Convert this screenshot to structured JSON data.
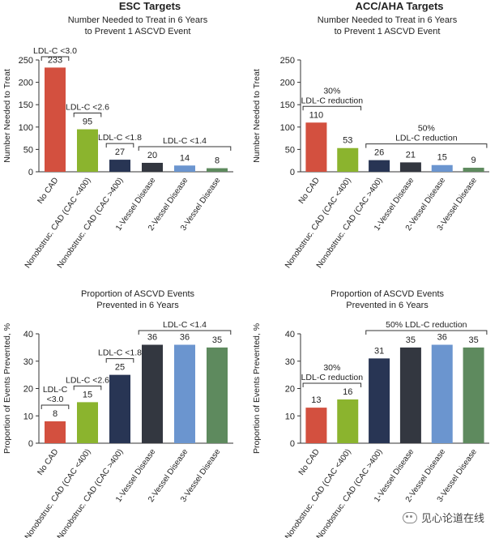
{
  "chart_data": [
    {
      "id": "esc-nnt",
      "type": "bar",
      "header": "ESC Targets",
      "title": "Number Needed to Treat in 6 Years\nto Prevent 1 ASCVD Event",
      "ylabel": "Number Needed to Treat",
      "ylim": [
        0,
        250
      ],
      "yticks": [
        "0",
        "50",
        "100",
        "150",
        "200",
        "250"
      ],
      "categories": [
        "No CAD",
        "Nonobstruc. CAD (CAC <400)",
        "Nonobstruc. CAD (CAC >400)",
        "1-Vessel Disease",
        "2-Vessel Disease",
        "3-Vessel Disease"
      ],
      "values": [
        233,
        95,
        27,
        20,
        14,
        8
      ],
      "colors": [
        "#d3503f",
        "#8bb42e",
        "#283554",
        "#333740",
        "#6b95cf",
        "#5e8a5e"
      ],
      "brackets": [
        {
          "label": "LDL-C <3.0",
          "from": 0,
          "to": 0
        },
        {
          "label": "LDL-C <2.6",
          "from": 1,
          "to": 1
        },
        {
          "label": "LDL-C <1.8",
          "from": 2,
          "to": 2
        },
        {
          "label": "LDL-C <1.4",
          "from": 3,
          "to": 5
        }
      ]
    },
    {
      "id": "acc-nnt",
      "type": "bar",
      "header": "ACC/AHA Targets",
      "title": "Number Needed to Treat in 6 Years\nto Prevent 1 ASCVD Event",
      "ylabel": "Number Needed to Treat",
      "ylim": [
        0,
        250
      ],
      "yticks": [
        "0",
        "50",
        "100",
        "150",
        "200",
        "250"
      ],
      "categories": [
        "No CAD",
        "Nonobstruc. CAD (CAC <400)",
        "Nonobstruc. CAD (CAC >400)",
        "1-Vessel Disease",
        "2-Vessel Disease",
        "3-Vessel Disease"
      ],
      "values": [
        110,
        53,
        26,
        21,
        15,
        9
      ],
      "colors": [
        "#d3503f",
        "#8bb42e",
        "#283554",
        "#333740",
        "#6b95cf",
        "#5e8a5e"
      ],
      "brackets": [
        {
          "label": "30%\nLDL-C reduction",
          "from": 0,
          "to": 1
        },
        {
          "label": "50%\nLDL-C reduction",
          "from": 2,
          "to": 5
        }
      ]
    },
    {
      "id": "esc-prop",
      "type": "bar",
      "header": "",
      "title": "Proportion of ASCVD Events\nPrevented in 6 Years",
      "ylabel": "Proportion of Events Prevented, %",
      "ylim": [
        0,
        40
      ],
      "yticks": [
        "0",
        "10",
        "20",
        "30",
        "40"
      ],
      "categories": [
        "No CAD",
        "Nonobstruc. CAD (CAC <400)",
        "Nonobstruc. CAD (CAC >400)",
        "1-Vessel Disease",
        "2-Vessel Disease",
        "3-Vessel Disease"
      ],
      "values": [
        8,
        15,
        25,
        36,
        36,
        35
      ],
      "colors": [
        "#d3503f",
        "#8bb42e",
        "#283554",
        "#333740",
        "#6b95cf",
        "#5e8a5e"
      ],
      "brackets": [
        {
          "label": "LDL-C\n<3.0",
          "from": 0,
          "to": 0
        },
        {
          "label": "LDL-C <2.6",
          "from": 1,
          "to": 1
        },
        {
          "label": "LDL-C <1.8",
          "from": 2,
          "to": 2
        },
        {
          "label": "LDL-C <1.4",
          "from": 3,
          "to": 5
        }
      ]
    },
    {
      "id": "acc-prop",
      "type": "bar",
      "header": "",
      "title": "Proportion of ASCVD Events\nPrevented in 6 Years",
      "ylabel": "Proportion of Events Prevented, %",
      "ylim": [
        0,
        40
      ],
      "yticks": [
        "0",
        "10",
        "20",
        "30",
        "40"
      ],
      "categories": [
        "No CAD",
        "Nonobstruc. CAD (CAC <400)",
        "Nonobstruc. CAD (CAC >400)",
        "1-Vessel Disease",
        "2-Vessel Disease",
        "3-Vessel Disease"
      ],
      "values": [
        13,
        16,
        31,
        35,
        36,
        35
      ],
      "colors": [
        "#d3503f",
        "#8bb42e",
        "#283554",
        "#333740",
        "#6b95cf",
        "#5e8a5e"
      ],
      "brackets": [
        {
          "label": "30%\nLDL-C reduction",
          "from": 0,
          "to": 1
        },
        {
          "label": "50% LDL-C reduction",
          "from": 2,
          "to": 5
        }
      ]
    }
  ],
  "watermark": "见心论道在线",
  "watermark_icon": "wechat-icon"
}
